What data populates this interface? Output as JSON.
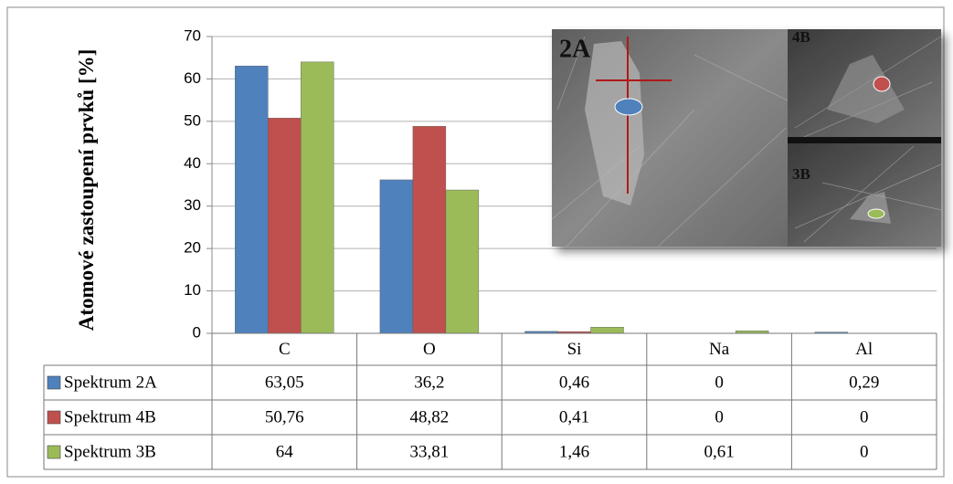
{
  "chart_data": {
    "type": "bar",
    "ylabel": "Atomové zastoupení prvků [%]",
    "categories": [
      "C",
      "O",
      "Si",
      "Na",
      "Al"
    ],
    "series": [
      {
        "name": "Spektrum 2A",
        "color": "#4f81bd",
        "values": [
          63.05,
          36.2,
          0.46,
          0,
          0.29
        ],
        "value_labels": [
          "63,05",
          "36,2",
          "0,46",
          "0",
          "0,29"
        ]
      },
      {
        "name": "Spektrum 4B",
        "color": "#c0504d",
        "values": [
          50.76,
          48.82,
          0.41,
          0,
          0
        ],
        "value_labels": [
          "50,76",
          "48,82",
          "0,41",
          "0",
          "0"
        ]
      },
      {
        "name": "Spektrum 3B",
        "color": "#9bbb59",
        "values": [
          64,
          33.81,
          1.46,
          0.61,
          0
        ],
        "value_labels": [
          "64",
          "33,81",
          "1,46",
          "0,61",
          "0"
        ]
      }
    ],
    "ylim": [
      0,
      70
    ],
    "yticks": [
      0,
      10,
      20,
      30,
      40,
      50,
      60,
      70
    ],
    "grid": true,
    "inset_labels": [
      "2A",
      "4B",
      "3B"
    ]
  }
}
